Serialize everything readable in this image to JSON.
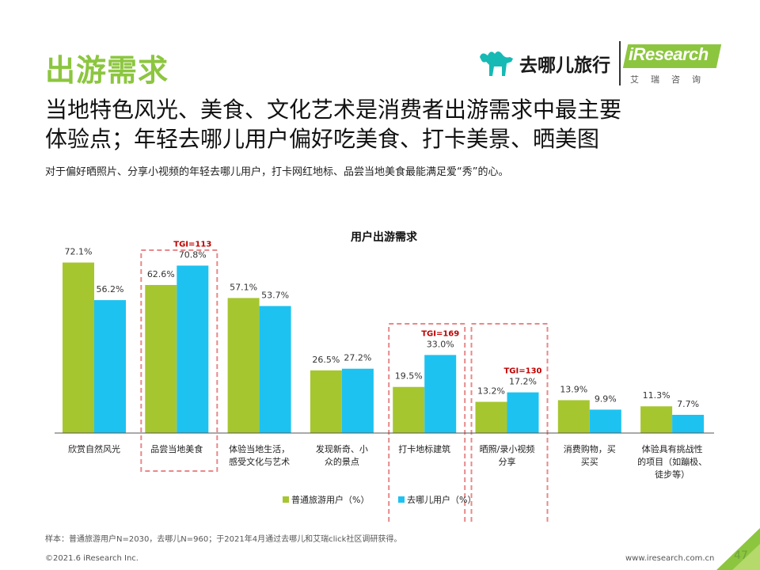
{
  "page": {
    "title": "出游需求",
    "headline_line1": "当地特色风光、美食、文化艺术是消费者出游需求中最主要",
    "headline_line2": "体验点；年轻去哪儿用户偏好吃美食、打卡美景、晒美图",
    "subtext": "对于偏好晒照片、分享小视频的年轻去哪儿用户，打卡网红地标、品尝当地美食最能满足爱“秀”的心。",
    "footnote": "样本：普通旅游用户N=2030，去哪儿N=960；于2021年4月通过去哪儿和艾瑞click社区调研获得。",
    "copyright": "©2021.6 iResearch Inc.",
    "website": "www.iresearch.com.cn",
    "page_number": "47"
  },
  "logos": {
    "qunar": "去哪儿旅行",
    "iresearch": "iResearch",
    "iresearch_cn": "艾瑞咨询"
  },
  "colors": {
    "green": "#a6c630",
    "blue": "#1ec2f0",
    "brand_green": "#8cc63f",
    "tgi_red": "#c00000",
    "dash_box": "#e8888a"
  },
  "chart_data": {
    "type": "bar",
    "title": "用户出游需求",
    "categories": [
      [
        "欣赏自然风光"
      ],
      [
        "品尝当地美食"
      ],
      [
        "体验当地生活，",
        "感受文化与艺术"
      ],
      [
        "发现新奇、小",
        "众的景点"
      ],
      [
        "打卡地标建筑"
      ],
      [
        "晒照/录小视频",
        "分享"
      ],
      [
        "消费购物，买",
        "买买"
      ],
      [
        "体验具有挑战性",
        "的项目（如蹦极、",
        "徒步等）"
      ]
    ],
    "series": [
      {
        "name": "普通旅游用户（%）",
        "values": [
          72.1,
          62.6,
          57.1,
          26.5,
          19.5,
          13.2,
          13.9,
          11.3
        ]
      },
      {
        "name": "去哪儿用户（%）",
        "values": [
          56.2,
          70.8,
          53.7,
          27.2,
          33.0,
          17.2,
          9.9,
          7.7
        ]
      }
    ],
    "value_labels": [
      [
        "72.1%",
        "62.6%",
        "57.1%",
        "26.5%",
        "19.5%",
        "13.2%",
        "13.9%",
        "11.3%"
      ],
      [
        "56.2%",
        "70.8%",
        "53.7%",
        "27.2%",
        "33.0%",
        "17.2%",
        "9.9%",
        "7.7%"
      ]
    ],
    "highlights": [
      {
        "category_index": 1,
        "tgi": "TGI=113"
      },
      {
        "category_index": 4,
        "tgi": "TGI=169"
      },
      {
        "category_index": 5,
        "tgi": "TGI=130"
      }
    ],
    "ylim": [
      0,
      80
    ],
    "legend_position": "bottom-center",
    "grid": false
  }
}
